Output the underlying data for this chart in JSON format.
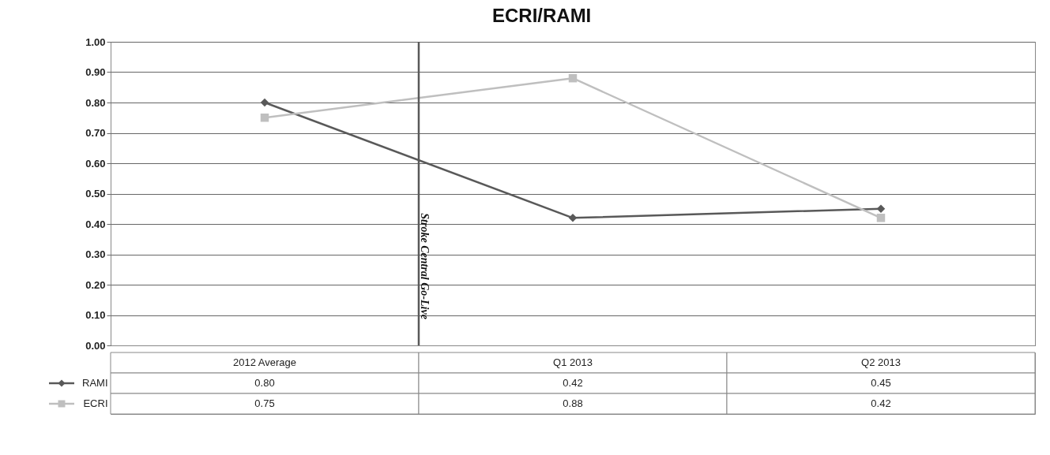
{
  "chart_data": {
    "type": "line",
    "title": "ECRI/RAMI",
    "categories": [
      "2012 Average",
      "Q1 2013",
      "Q2 2013"
    ],
    "series": [
      {
        "name": "RAMI",
        "color": "#595959",
        "marker": "diamond",
        "values": [
          0.8,
          0.42,
          0.45
        ],
        "value_labels": [
          "0.80",
          "0.42",
          "0.45"
        ]
      },
      {
        "name": "ECRI",
        "color": "#bfbfbf",
        "marker": "square",
        "values": [
          0.75,
          0.88,
          0.42
        ],
        "value_labels": [
          "0.75",
          "0.88",
          "0.42"
        ]
      }
    ],
    "ylim": [
      0,
      1
    ],
    "yticks": [
      {
        "value": 0,
        "label": "0.00"
      },
      {
        "value": 0.1,
        "label": "0.10"
      },
      {
        "value": 0.2,
        "label": "0.20"
      },
      {
        "value": 0.3,
        "label": "0.30"
      },
      {
        "value": 0.4,
        "label": "0.40"
      },
      {
        "value": 0.5,
        "label": "0.50"
      },
      {
        "value": 0.6,
        "label": "0.60"
      },
      {
        "value": 0.7,
        "label": "0.70"
      },
      {
        "value": 0.8,
        "label": "0.80"
      },
      {
        "value": 0.9,
        "label": "0.90"
      },
      {
        "value": 1,
        "label": "1.00"
      }
    ],
    "grid": "y",
    "legend": "bottom",
    "line_style": "solid",
    "ref_lines": [
      {
        "axis": "x",
        "value": "Q1 2013",
        "label": "Stroke Central Go-Live",
        "color": "#595959"
      }
    ]
  }
}
